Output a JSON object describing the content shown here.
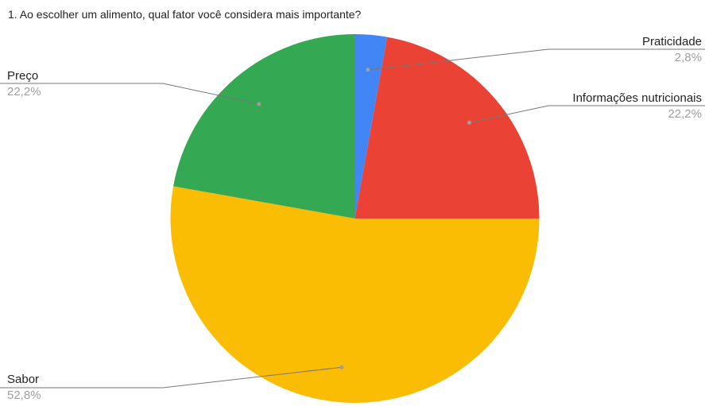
{
  "chart_data": {
    "type": "pie",
    "title": "1. Ao escolher um alimento, qual fator você considera mais importante?",
    "slices": [
      {
        "label": "Praticidade",
        "value": 2.8,
        "display": "2,8%",
        "color": "#4285f4"
      },
      {
        "label": "Informações nutricionais",
        "value": 22.2,
        "display": "22,2%",
        "color": "#ea4335"
      },
      {
        "label": "Sabor",
        "value": 52.8,
        "display": "52,8%",
        "color": "#fbbc04"
      },
      {
        "label": "Preço",
        "value": 22.2,
        "display": "22,2%",
        "color": "#34a853"
      }
    ],
    "start_angle": "top",
    "direction": "clockwise"
  }
}
